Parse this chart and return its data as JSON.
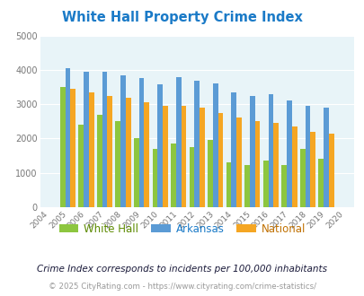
{
  "title": "White Hall Property Crime Index",
  "years": [
    2005,
    2006,
    2007,
    2008,
    2009,
    2010,
    2011,
    2012,
    2013,
    2014,
    2015,
    2016,
    2017,
    2018,
    2019
  ],
  "white_hall": [
    3500,
    2400,
    2700,
    2500,
    2000,
    1700,
    1850,
    1750,
    1950,
    1300,
    1225,
    1350,
    1225,
    1700,
    1400
  ],
  "arkansas": [
    4050,
    3950,
    3950,
    3850,
    3750,
    3575,
    3775,
    3675,
    3600,
    3350,
    3250,
    3300,
    3100,
    2950,
    2900
  ],
  "national": [
    3450,
    3350,
    3250,
    3200,
    3050,
    2950,
    2950,
    2900,
    2750,
    2600,
    2500,
    2450,
    2350,
    2200,
    2150
  ],
  "white_hall_color": "#8dc63f",
  "arkansas_color": "#5b9bd5",
  "national_color": "#f5a623",
  "bg_color": "#e8f4f8",
  "ylim": [
    0,
    5000
  ],
  "yticks": [
    0,
    1000,
    2000,
    3000,
    4000,
    5000
  ],
  "note": "Crime Index corresponds to incidents per 100,000 inhabitants",
  "footer": "© 2025 CityRating.com - https://www.cityrating.com/crime-statistics/",
  "title_color": "#1a7ac7",
  "note_color": "#1a1a3a",
  "footer_color": "#999999",
  "legend_wh_color": "#5c8a00",
  "legend_ar_color": "#1a7ac7",
  "legend_na_color": "#c07000"
}
